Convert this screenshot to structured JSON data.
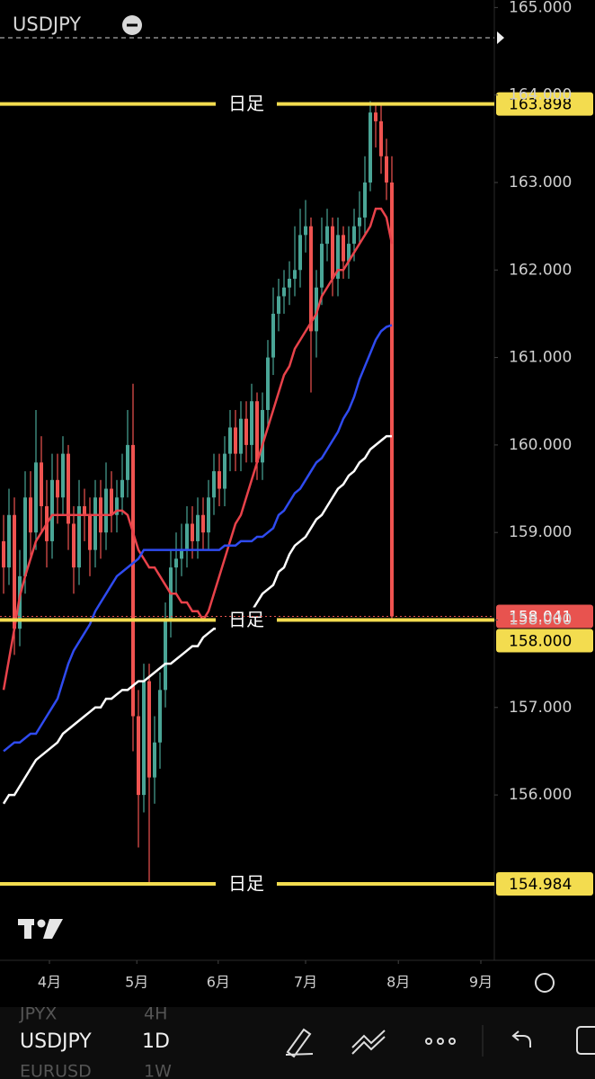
{
  "chart_data": {
    "type": "candlestick",
    "symbol": "USDJPY",
    "open": [
      158.9,
      158.6,
      159.2,
      157.9,
      158.5,
      159.4,
      159.0,
      159.8,
      159.3,
      158.9,
      159.6,
      159.4,
      159.9,
      159.1,
      158.6,
      159.3,
      159.2,
      158.8,
      159.4,
      159.0,
      159.5,
      159.2,
      159.4,
      159.6,
      160.0,
      156.9,
      156.0,
      157.3,
      156.2,
      156.6,
      157.2,
      158.0,
      158.6,
      158.7,
      158.8,
      159.1,
      158.9,
      159.2,
      159.0,
      159.4,
      159.7,
      159.5,
      159.9,
      160.2,
      159.9,
      160.3,
      160.0,
      160.5,
      159.8,
      160.4,
      161.0,
      161.5,
      161.7,
      161.8,
      161.9,
      162.0,
      162.4,
      162.5,
      161.3,
      161.8,
      162.3,
      162.5,
      161.9,
      162.4,
      162.1,
      162.3,
      162.5,
      162.6,
      163.0,
      163.8,
      163.7,
      163.3,
      163.0
    ],
    "high": [
      159.2,
      159.5,
      159.4,
      158.8,
      159.7,
      159.7,
      160.4,
      160.1,
      159.6,
      159.9,
      159.9,
      160.1,
      160.0,
      159.3,
      159.6,
      159.5,
      159.4,
      159.6,
      159.6,
      159.8,
      159.7,
      159.6,
      159.9,
      160.4,
      160.7,
      157.2,
      157.5,
      157.5,
      156.9,
      157.4,
      158.2,
      158.8,
      159.0,
      159.1,
      159.3,
      159.3,
      159.4,
      159.4,
      159.6,
      159.9,
      159.9,
      160.1,
      160.4,
      160.4,
      160.5,
      160.5,
      160.7,
      160.6,
      160.6,
      161.2,
      161.8,
      161.9,
      162.0,
      162.1,
      162.5,
      162.7,
      162.8,
      162.6,
      162.0,
      162.6,
      162.7,
      162.6,
      162.6,
      162.5,
      162.5,
      162.7,
      162.9,
      163.3,
      163.93,
      163.9,
      163.9,
      163.5,
      163.3
    ],
    "low": [
      158.3,
      158.4,
      157.6,
      157.7,
      158.3,
      158.7,
      158.8,
      159.0,
      158.6,
      158.7,
      159.1,
      159.2,
      158.8,
      158.3,
      158.4,
      158.9,
      158.5,
      158.6,
      158.7,
      158.8,
      159.0,
      159.0,
      159.2,
      159.4,
      156.5,
      155.4,
      155.8,
      154.98,
      155.9,
      156.3,
      157.0,
      157.8,
      158.3,
      158.5,
      158.6,
      158.7,
      158.7,
      158.8,
      158.8,
      159.2,
      159.3,
      159.3,
      159.7,
      159.7,
      159.7,
      159.8,
      159.8,
      159.6,
      159.6,
      160.2,
      160.8,
      161.3,
      161.5,
      161.6,
      161.7,
      161.8,
      162.2,
      160.6,
      161.0,
      161.6,
      162.1,
      161.7,
      161.7,
      161.9,
      161.9,
      162.1,
      162.3,
      162.4,
      162.9,
      163.4,
      163.1,
      162.8,
      158.0
    ],
    "close": [
      158.6,
      159.2,
      157.9,
      158.5,
      159.4,
      159.0,
      159.8,
      159.3,
      158.9,
      159.6,
      159.4,
      159.9,
      159.1,
      158.6,
      159.3,
      159.2,
      158.8,
      159.4,
      159.0,
      159.5,
      159.2,
      159.4,
      159.6,
      160.0,
      156.9,
      156.0,
      157.3,
      156.2,
      156.6,
      157.2,
      158.0,
      158.6,
      158.7,
      158.8,
      159.1,
      158.9,
      159.2,
      159.0,
      159.4,
      159.7,
      159.5,
      159.9,
      160.2,
      159.9,
      160.3,
      160.0,
      160.5,
      159.8,
      160.4,
      161.0,
      161.5,
      161.7,
      161.8,
      161.9,
      162.0,
      162.4,
      162.5,
      161.3,
      161.8,
      162.3,
      162.5,
      161.9,
      162.4,
      162.1,
      162.3,
      162.5,
      162.6,
      163.0,
      163.8,
      163.7,
      163.3,
      163.0,
      158.041
    ],
    "up_color": "#4aa596",
    "down_color": "#ef5350",
    "moving_averages": [
      {
        "color": "#e8424a",
        "values": [
          157.2,
          157.55,
          157.9,
          158.27,
          158.5,
          158.7,
          158.9,
          159.0,
          159.1,
          159.2,
          159.2,
          159.2,
          159.2,
          159.2,
          159.2,
          159.2,
          159.2,
          159.2,
          159.2,
          159.2,
          159.2,
          159.25,
          159.25,
          159.2,
          159.0,
          158.8,
          158.7,
          158.6,
          158.6,
          158.5,
          158.4,
          158.3,
          158.3,
          158.2,
          158.2,
          158.1,
          158.1,
          158.0,
          158.1,
          158.3,
          158.5,
          158.7,
          158.9,
          159.1,
          159.2,
          159.4,
          159.6,
          159.8,
          160.0,
          160.2,
          160.4,
          160.6,
          160.8,
          160.9,
          161.1,
          161.2,
          161.3,
          161.4,
          161.5,
          161.7,
          161.8,
          161.9,
          162.0,
          162.0,
          162.1,
          162.2,
          162.3,
          162.4,
          162.5,
          162.7,
          162.7,
          162.6,
          162.3
        ]
      },
      {
        "color": "#2f4bf0",
        "values": [
          156.5,
          156.55,
          156.6,
          156.6,
          156.65,
          156.7,
          156.7,
          156.8,
          156.9,
          157.0,
          157.1,
          157.3,
          157.5,
          157.65,
          157.75,
          157.85,
          157.95,
          158.1,
          158.2,
          158.3,
          158.4,
          158.5,
          158.55,
          158.6,
          158.65,
          158.7,
          158.8,
          158.8,
          158.8,
          158.8,
          158.8,
          158.8,
          158.8,
          158.8,
          158.8,
          158.8,
          158.8,
          158.8,
          158.8,
          158.8,
          158.8,
          158.85,
          158.85,
          158.85,
          158.9,
          158.9,
          158.9,
          158.95,
          158.95,
          159.0,
          159.05,
          159.2,
          159.25,
          159.35,
          159.45,
          159.5,
          159.6,
          159.7,
          159.8,
          159.85,
          159.95,
          160.05,
          160.15,
          160.3,
          160.4,
          160.55,
          160.75,
          160.9,
          161.05,
          161.2,
          161.3,
          161.35,
          161.37
        ]
      },
      {
        "color": "#ffffff",
        "values": [
          155.9,
          156.0,
          156.0,
          156.1,
          156.2,
          156.3,
          156.4,
          156.45,
          156.5,
          156.55,
          156.6,
          156.7,
          156.75,
          156.8,
          156.85,
          156.9,
          156.95,
          157.0,
          157.0,
          157.1,
          157.1,
          157.15,
          157.2,
          157.2,
          157.25,
          157.3,
          157.3,
          157.35,
          157.4,
          157.45,
          157.5,
          157.5,
          157.55,
          157.6,
          157.65,
          157.7,
          157.7,
          157.8,
          157.85,
          157.9,
          157.9,
          157.95,
          158.0,
          158.0,
          158.05,
          158.1,
          158.1,
          158.2,
          158.3,
          158.35,
          158.4,
          158.55,
          158.6,
          158.75,
          158.85,
          158.9,
          158.95,
          159.05,
          159.15,
          159.2,
          159.3,
          159.4,
          159.5,
          159.55,
          159.65,
          159.7,
          159.8,
          159.85,
          159.95,
          160.0,
          160.05,
          160.1,
          160.1
        ]
      }
    ],
    "hlines": [
      {
        "value": 163.898,
        "label": "日足",
        "color": "#f3dc4f"
      },
      {
        "value": 158.0,
        "value_label": "158.000",
        "label": "日足",
        "color": "#f3dc4f"
      },
      {
        "value": 154.984,
        "label": "日足",
        "color": "#f3dc4f"
      }
    ],
    "last_price": 158.041,
    "last_price_color": "#e8534f",
    "ylim": [
      154.11,
      165.086
    ],
    "yticks": [
      {
        "value": 156,
        "label": "156.000"
      },
      {
        "value": 157,
        "label": "157.000"
      },
      {
        "value": 158,
        "label": "158.000"
      },
      {
        "value": 159,
        "label": "159.000"
      },
      {
        "value": 160,
        "label": "160.000"
      },
      {
        "value": 161,
        "label": "161.000"
      },
      {
        "value": 162,
        "label": "162.000"
      },
      {
        "value": 163,
        "label": "163.000"
      },
      {
        "value": 164,
        "label": "164.000"
      },
      {
        "value": 165,
        "label": "165.000"
      }
    ],
    "xticks": [
      {
        "value": 8.5,
        "label": "4月"
      },
      {
        "value": 24.7,
        "label": "5月"
      },
      {
        "value": 39.8,
        "label": "6月"
      },
      {
        "value": 56,
        "label": "7月"
      },
      {
        "value": 73.2,
        "label": "8月"
      },
      {
        "value": 88.5,
        "label": "9月"
      }
    ]
  },
  "ui": {
    "toolbar_symbol": "USDJPY",
    "interval": "1D",
    "symbol_list": [
      "JPYX",
      "EURUSD"
    ],
    "interval_list": [
      "4H",
      "1W"
    ]
  }
}
